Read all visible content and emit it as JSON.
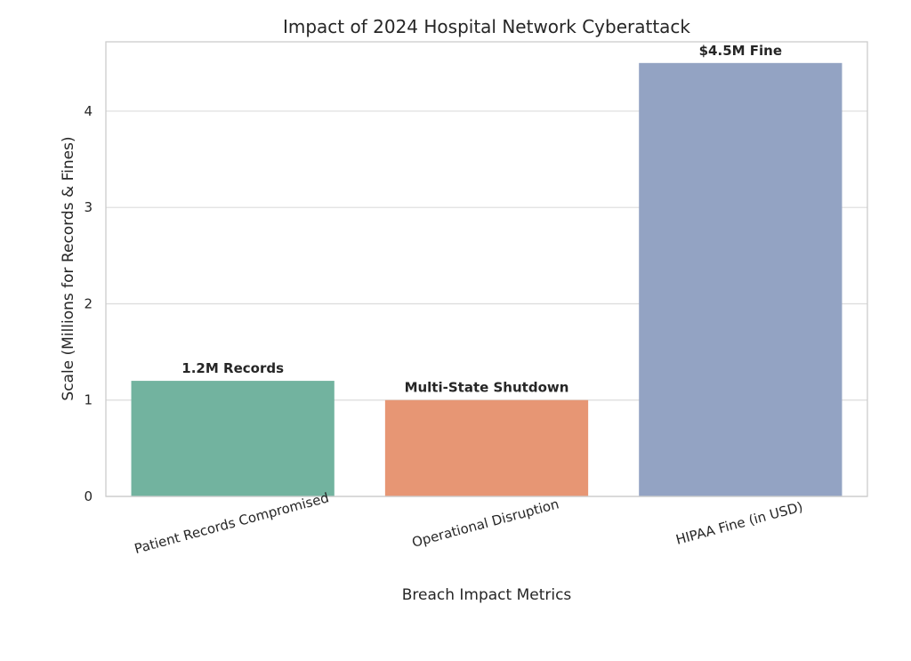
{
  "chart_data": {
    "type": "bar",
    "title": "Impact of 2024 Hospital Network Cyberattack",
    "xlabel": "Breach Impact Metrics",
    "ylabel": "Scale (Millions for Records & Fines)",
    "categories": [
      "Patient Records Compromised",
      "Operational Disruption",
      "HIPAA Fine (in USD)"
    ],
    "values": [
      1.2,
      1.0,
      4.5
    ],
    "bar_labels": [
      "1.2M Records",
      "Multi-State Shutdown",
      "$4.5M Fine"
    ],
    "colors": [
      "#72b39f",
      "#e79674",
      "#93a3c3"
    ],
    "ylim": [
      0,
      4.72
    ],
    "yticks": [
      0,
      1,
      2,
      3,
      4
    ],
    "grid": true,
    "legend": "none"
  }
}
